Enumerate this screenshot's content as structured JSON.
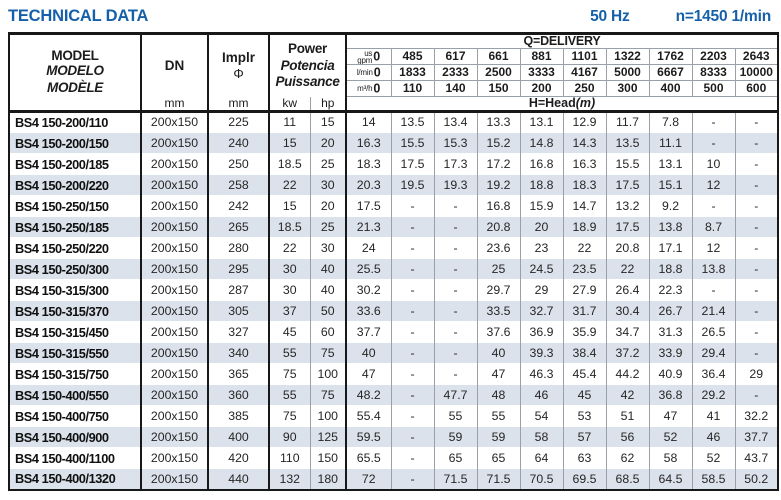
{
  "title": "TECHNICAL DATA",
  "frequency": "50 Hz",
  "speed": "n=1450 1/min",
  "colors": {
    "accent_blue": "#1560a8",
    "row_shade": "#dbe2eb",
    "border_dark": "#181818",
    "grid_gray": "#99a0a8"
  },
  "header": {
    "model": [
      "MODEL",
      "MODELO",
      "MODÈLE"
    ],
    "dn_label": "DN",
    "dn_unit": "mm",
    "impeller_label": "Implr",
    "impeller_symbol": "Φ",
    "impeller_unit": "mm",
    "power": [
      "Power",
      "Potencia",
      "Puissance"
    ],
    "power_units": [
      "kw",
      "hp"
    ],
    "delivery_title": "Q=DELIVERY",
    "flow_units": [
      "us gpm",
      "l/min",
      "m³/h"
    ],
    "gpm": [
      "0",
      "485",
      "617",
      "661",
      "881",
      "1101",
      "1322",
      "1762",
      "2203",
      "2643"
    ],
    "lmin": [
      "0",
      "1833",
      "2333",
      "2500",
      "3333",
      "4167",
      "5000",
      "6667",
      "8333",
      "10000"
    ],
    "m3h": [
      "0",
      "110",
      "140",
      "150",
      "200",
      "250",
      "300",
      "400",
      "500",
      "600"
    ],
    "head_label": "H=Head",
    "head_unit": "(m)"
  },
  "rows": [
    {
      "model": "BS4 150-200/110",
      "dn": "200x150",
      "impeller": "225",
      "kw": "11",
      "hp": "15",
      "head": [
        "14",
        "13.5",
        "13.4",
        "13.3",
        "13.1",
        "12.9",
        "11.7",
        "7.8",
        "-",
        "-"
      ]
    },
    {
      "model": "BS4 150-200/150",
      "dn": "200x150",
      "impeller": "240",
      "kw": "15",
      "hp": "20",
      "head": [
        "16.3",
        "15.5",
        "15.3",
        "15.2",
        "14.8",
        "14.3",
        "13.5",
        "11.1",
        "-",
        "-"
      ]
    },
    {
      "model": "BS4 150-200/185",
      "dn": "200x150",
      "impeller": "250",
      "kw": "18.5",
      "hp": "25",
      "head": [
        "18.3",
        "17.5",
        "17.3",
        "17.2",
        "16.8",
        "16.3",
        "15.5",
        "13.1",
        "10",
        "-"
      ]
    },
    {
      "model": "BS4 150-200/220",
      "dn": "200x150",
      "impeller": "258",
      "kw": "22",
      "hp": "30",
      "head": [
        "20.3",
        "19.5",
        "19.3",
        "19.2",
        "18.8",
        "18.3",
        "17.5",
        "15.1",
        "12",
        "-"
      ]
    },
    {
      "model": "BS4 150-250/150",
      "dn": "200x150",
      "impeller": "242",
      "kw": "15",
      "hp": "20",
      "head": [
        "17.5",
        "-",
        "-",
        "16.8",
        "15.9",
        "14.7",
        "13.2",
        "9.2",
        "-",
        "-"
      ]
    },
    {
      "model": "BS4 150-250/185",
      "dn": "200x150",
      "impeller": "265",
      "kw": "18.5",
      "hp": "25",
      "head": [
        "21.3",
        "-",
        "-",
        "20.8",
        "20",
        "18.9",
        "17.5",
        "13.8",
        "8.7",
        "-"
      ]
    },
    {
      "model": "BS4 150-250/220",
      "dn": "200x150",
      "impeller": "280",
      "kw": "22",
      "hp": "30",
      "head": [
        "24",
        "-",
        "-",
        "23.6",
        "23",
        "22",
        "20.8",
        "17.1",
        "12",
        "-"
      ]
    },
    {
      "model": "BS4 150-250/300",
      "dn": "200x150",
      "impeller": "295",
      "kw": "30",
      "hp": "40",
      "head": [
        "25.5",
        "-",
        "-",
        "25",
        "24.5",
        "23.5",
        "22",
        "18.8",
        "13.8",
        "-"
      ]
    },
    {
      "model": "BS4 150-315/300",
      "dn": "200x150",
      "impeller": "287",
      "kw": "30",
      "hp": "40",
      "head": [
        "30.2",
        "-",
        "-",
        "29.7",
        "29",
        "27.9",
        "26.4",
        "22.3",
        "-",
        "-"
      ]
    },
    {
      "model": "BS4 150-315/370",
      "dn": "200x150",
      "impeller": "305",
      "kw": "37",
      "hp": "50",
      "head": [
        "33.6",
        "-",
        "-",
        "33.5",
        "32.7",
        "31.7",
        "30.4",
        "26.7",
        "21.4",
        "-"
      ]
    },
    {
      "model": "BS4 150-315/450",
      "dn": "200x150",
      "impeller": "327",
      "kw": "45",
      "hp": "60",
      "head": [
        "37.7",
        "-",
        "-",
        "37.6",
        "36.9",
        "35.9",
        "34.7",
        "31.3",
        "26.5",
        "-"
      ]
    },
    {
      "model": "BS4 150-315/550",
      "dn": "200x150",
      "impeller": "340",
      "kw": "55",
      "hp": "75",
      "head": [
        "40",
        "-",
        "-",
        "40",
        "39.3",
        "38.4",
        "37.2",
        "33.9",
        "29.4",
        "-"
      ]
    },
    {
      "model": "BS4 150-315/750",
      "dn": "200x150",
      "impeller": "365",
      "kw": "75",
      "hp": "100",
      "head": [
        "47",
        "-",
        "-",
        "47",
        "46.3",
        "45.4",
        "44.2",
        "40.9",
        "36.4",
        "29"
      ]
    },
    {
      "model": "BS4 150-400/550",
      "dn": "200x150",
      "impeller": "360",
      "kw": "55",
      "hp": "75",
      "head": [
        "48.2",
        "-",
        "47.7",
        "48",
        "46",
        "45",
        "42",
        "36.8",
        "29.2",
        "-"
      ]
    },
    {
      "model": "BS4 150-400/750",
      "dn": "200x150",
      "impeller": "385",
      "kw": "75",
      "hp": "100",
      "head": [
        "55.4",
        "-",
        "55",
        "55",
        "54",
        "53",
        "51",
        "47",
        "41",
        "32.2"
      ]
    },
    {
      "model": "BS4 150-400/900",
      "dn": "200x150",
      "impeller": "400",
      "kw": "90",
      "hp": "125",
      "head": [
        "59.5",
        "-",
        "59",
        "59",
        "58",
        "57",
        "56",
        "52",
        "46",
        "37.7"
      ]
    },
    {
      "model": "BS4 150-400/1100",
      "dn": "200x150",
      "impeller": "420",
      "kw": "110",
      "hp": "150",
      "head": [
        "65.5",
        "-",
        "65",
        "65",
        "64",
        "63",
        "62",
        "58",
        "52",
        "43.7"
      ]
    },
    {
      "model": "BS4 150-400/1320",
      "dn": "200x150",
      "impeller": "440",
      "kw": "132",
      "hp": "180",
      "head": [
        "72",
        "-",
        "71.5",
        "71.5",
        "70.5",
        "69.5",
        "68.5",
        "64.5",
        "58.5",
        "50.2"
      ]
    }
  ]
}
